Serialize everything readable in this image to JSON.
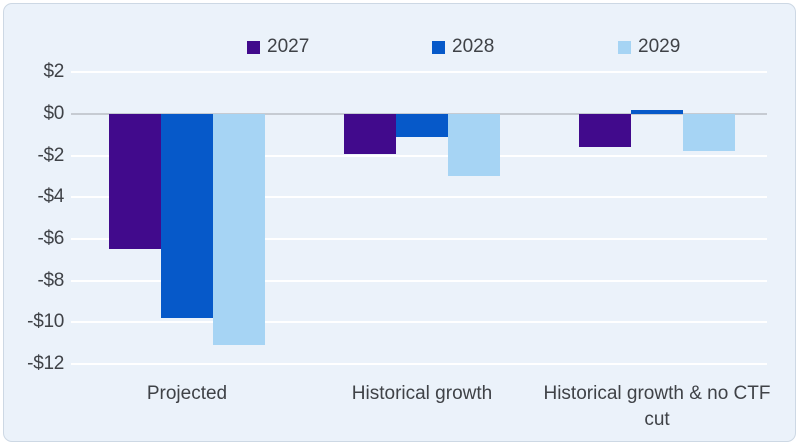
{
  "chart_data": {
    "type": "bar",
    "title": "",
    "categories": [
      "Projected",
      "Historical growth",
      "Historical growth & no CTF cut"
    ],
    "series": [
      {
        "name": "2027",
        "color": "#410A8C",
        "values": [
          -6.5,
          -1.9,
          -1.6
        ]
      },
      {
        "name": "2028",
        "color": "#0659C9",
        "values": [
          -9.8,
          -1.1,
          0.2
        ]
      },
      {
        "name": "2029",
        "color": "#A6D4F4",
        "values": [
          -11.1,
          -3.0,
          -1.8
        ]
      }
    ],
    "y_axis": {
      "ticks": [
        "$2",
        "$0",
        "-$2",
        "-$4",
        "-$6",
        "-$8",
        "-$10",
        "-$12"
      ],
      "tick_values": [
        2,
        0,
        -2,
        -4,
        -6,
        -8,
        -10,
        -12
      ],
      "min": -12,
      "max": 2,
      "format": "currency"
    },
    "xlabel": "",
    "ylabel": "",
    "grid": true,
    "legend_position": "top"
  },
  "colors": {
    "page_background": "#FFFFFF",
    "card_background": "#EBF2FA",
    "card_border": "#CDD8E4",
    "gridline": "#FFFFFF",
    "zero_line": "#C6CBD2",
    "text": "#3F4247"
  }
}
